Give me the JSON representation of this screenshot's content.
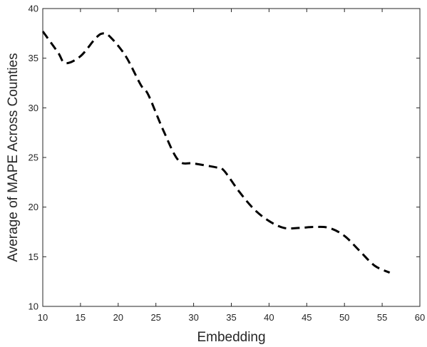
{
  "chart_data": {
    "type": "line",
    "xlabel": "Embedding",
    "ylabel": "Average of MAPE Across Counties",
    "xlim": [
      10,
      60
    ],
    "ylim": [
      10,
      40
    ],
    "xticks": [
      10,
      15,
      20,
      25,
      30,
      35,
      40,
      45,
      50,
      55,
      60
    ],
    "yticks": [
      10,
      15,
      20,
      25,
      30,
      35,
      40
    ],
    "xtick_labels": [
      "10",
      "15",
      "20",
      "25",
      "30",
      "35",
      "40",
      "45",
      "50",
      "55",
      "60"
    ],
    "ytick_labels": [
      "10",
      "15",
      "20",
      "25",
      "30",
      "35",
      "40"
    ],
    "grid": false,
    "series": [
      {
        "line_style": "dashed",
        "color": "#000000",
        "x": [
          10,
          12,
          13,
          15,
          17,
          18,
          19,
          21,
          23,
          24,
          26,
          28,
          30,
          33,
          34,
          36,
          38,
          40,
          42,
          44,
          46,
          48,
          50,
          52,
          54,
          56
        ],
        "y": [
          37.7,
          35.6,
          34.5,
          35.2,
          37.0,
          37.5,
          37.1,
          35.2,
          32.3,
          31.3,
          27.7,
          24.7,
          24.4,
          24.0,
          23.7,
          21.6,
          19.8,
          18.6,
          17.9,
          17.9,
          18.0,
          17.9,
          17.1,
          15.6,
          14.1,
          13.4
        ]
      }
    ]
  }
}
